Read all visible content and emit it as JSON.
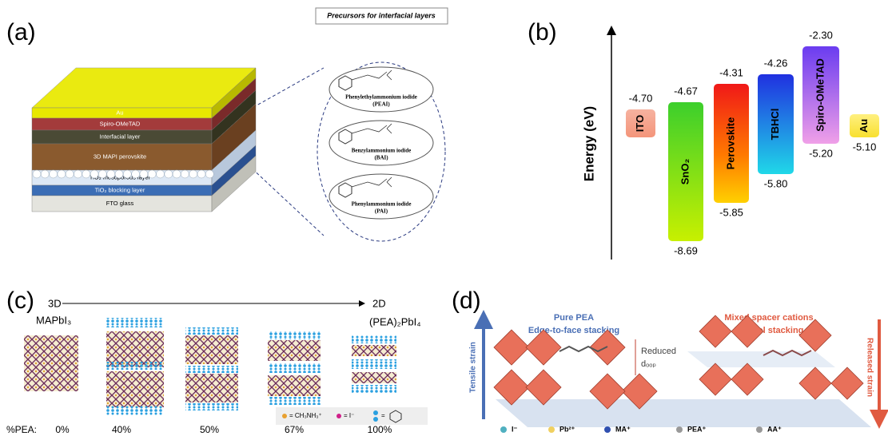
{
  "panel_a": {
    "label": "(a)",
    "layers": [
      "Au",
      "Spiro-OMeTAD",
      "Interfacial layer",
      "3D MAPI perovskite",
      "TiO₂ mesoporous layer",
      "TiO₂ blocking layer",
      "FTO glass"
    ],
    "callout_title": "Precursors for interfacial layers",
    "precursors": [
      {
        "name": "Phenylethylammonium iodide",
        "abbr": "(PEAI)"
      },
      {
        "name": "Benzylammonium iodide",
        "abbr": "(BAI)"
      },
      {
        "name": "Phenylammonium iodide",
        "abbr": "(PAI)"
      }
    ]
  },
  "panel_b": {
    "label": "(b)",
    "axis_label": "Energy (eV)",
    "levels": [
      {
        "name": "ITO",
        "top": "-4.70"
      },
      {
        "name": "SnO₂",
        "top": "-4.67",
        "bottom": "-8.69"
      },
      {
        "name": "Perovskite",
        "top": "-4.31",
        "bottom": "-5.85"
      },
      {
        "name": "TBHCl",
        "top": "-4.26",
        "bottom": "-5.80"
      },
      {
        "name": "Spiro-OMeTAD",
        "top": "-2.30",
        "bottom": "-5.20"
      },
      {
        "name": "Au",
        "bottom": "-5.10"
      }
    ]
  },
  "panel_c": {
    "label": "(c)",
    "start": "3D",
    "end": "2D",
    "start_phase": "MAPbI₃",
    "end_phase": "(PEA)₂PbI₄",
    "row_label": "%PEA:",
    "percentages": [
      "0%",
      "40%",
      "50%",
      "67%",
      "100%"
    ],
    "legend": [
      "= CH₃NH₃⁺",
      "= I⁻",
      "="
    ]
  },
  "panel_d": {
    "label": "(d)",
    "left_title": [
      "Pure PEA",
      "Edge-to-face stacking"
    ],
    "right_title": [
      "Mixed spacer cations",
      "Parallel stacking"
    ],
    "left_axis": "Tensile strain",
    "right_axis": "Released strain",
    "annotation": "Reduced",
    "annotation_sub": "dₒₒₚ",
    "legend": [
      "I⁻",
      "Pb²⁺",
      "MA⁺",
      "PEA⁺",
      "AA⁺"
    ]
  }
}
